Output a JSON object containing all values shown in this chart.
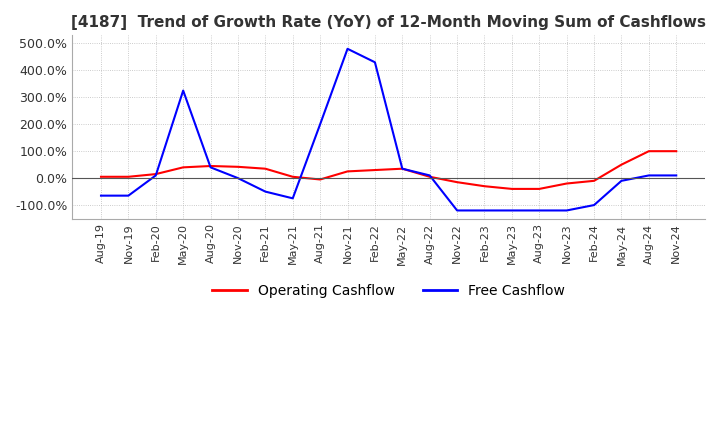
{
  "title": "[4187]  Trend of Growth Rate (YoY) of 12-Month Moving Sum of Cashflows",
  "title_fontsize": 11,
  "ylim": [
    -150,
    530
  ],
  "yticks": [
    -100,
    0,
    100,
    200,
    300,
    400,
    500
  ],
  "ytick_labels": [
    "-100.0%",
    "0.0%",
    "100.0%",
    "200.0%",
    "300.0%",
    "400.0%",
    "500.0%"
  ],
  "background_color": "#ffffff",
  "plot_bg_color": "#ffffff",
  "grid_color": "#aaaaaa",
  "legend_labels": [
    "Operating Cashflow",
    "Free Cashflow"
  ],
  "legend_colors": [
    "#ff0000",
    "#0000ff"
  ],
  "x_dates": [
    "Aug-19",
    "Nov-19",
    "Feb-20",
    "May-20",
    "Aug-20",
    "Nov-20",
    "Feb-21",
    "May-21",
    "Aug-21",
    "Nov-21",
    "Feb-22",
    "May-22",
    "Aug-22",
    "Nov-22",
    "Feb-23",
    "May-23",
    "Aug-23",
    "Nov-23",
    "Feb-24",
    "May-24",
    "Aug-24",
    "Nov-24"
  ],
  "operating_cashflow": [
    5,
    5,
    15,
    40,
    45,
    42,
    35,
    5,
    -5,
    25,
    30,
    35,
    5,
    -15,
    -30,
    -40,
    -40,
    -20,
    -10,
    50,
    100,
    100
  ],
  "free_cashflow": [
    -65,
    -65,
    10,
    325,
    40,
    0,
    -50,
    -75,
    200,
    480,
    430,
    35,
    10,
    -120,
    -120,
    -120,
    -120,
    -120,
    -100,
    -10,
    10,
    10
  ]
}
